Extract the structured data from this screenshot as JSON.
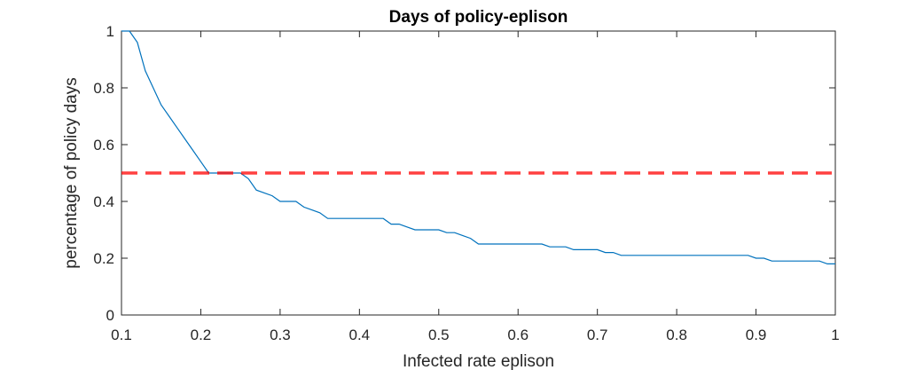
{
  "chart_data": {
    "type": "line",
    "title": "Days of policy-eplison",
    "xlabel": "Infected rate eplison",
    "ylabel": "percentage of policy days",
    "xlim": [
      0.1,
      1
    ],
    "ylim": [
      0,
      1
    ],
    "xticks": [
      0.1,
      0.2,
      0.3,
      0.4,
      0.5,
      0.6,
      0.7,
      0.8,
      0.9,
      1
    ],
    "xtick_labels": [
      "0.1",
      "0.2",
      "0.3",
      "0.4",
      "0.5",
      "0.6",
      "0.7",
      "0.8",
      "0.9",
      "1"
    ],
    "yticks": [
      0,
      0.2,
      0.4,
      0.6,
      0.8,
      1
    ],
    "ytick_labels": [
      "0",
      "0.2",
      "0.4",
      "0.6",
      "0.8",
      "1"
    ],
    "grid": false,
    "box": true,
    "series": [
      {
        "color": "#0072bd",
        "style": "solid",
        "x": [
          0.1,
          0.11,
          0.12,
          0.13,
          0.14,
          0.15,
          0.16,
          0.17,
          0.18,
          0.19,
          0.2,
          0.21,
          0.22,
          0.23,
          0.24,
          0.25,
          0.26,
          0.27,
          0.28,
          0.29,
          0.3,
          0.31,
          0.32,
          0.33,
          0.34,
          0.35,
          0.36,
          0.37,
          0.38,
          0.39,
          0.4,
          0.41,
          0.42,
          0.43,
          0.44,
          0.45,
          0.46,
          0.47,
          0.48,
          0.49,
          0.5,
          0.51,
          0.52,
          0.53,
          0.54,
          0.55,
          0.56,
          0.57,
          0.58,
          0.59,
          0.6,
          0.61,
          0.62,
          0.63,
          0.64,
          0.65,
          0.66,
          0.67,
          0.68,
          0.69,
          0.7,
          0.71,
          0.72,
          0.73,
          0.74,
          0.75,
          0.76,
          0.77,
          0.78,
          0.79,
          0.8,
          0.81,
          0.82,
          0.83,
          0.84,
          0.85,
          0.86,
          0.87,
          0.88,
          0.89,
          0.9,
          0.91,
          0.92,
          0.93,
          0.94,
          0.95,
          0.96,
          0.97,
          0.98,
          0.99,
          1.0
        ],
        "y": [
          1.0,
          1.0,
          0.96,
          0.86,
          0.8,
          0.74,
          0.7,
          0.66,
          0.62,
          0.58,
          0.54,
          0.5,
          0.5,
          0.5,
          0.5,
          0.5,
          0.48,
          0.44,
          0.43,
          0.42,
          0.4,
          0.4,
          0.4,
          0.38,
          0.37,
          0.36,
          0.34,
          0.34,
          0.34,
          0.34,
          0.34,
          0.34,
          0.34,
          0.34,
          0.32,
          0.32,
          0.31,
          0.3,
          0.3,
          0.3,
          0.3,
          0.29,
          0.29,
          0.28,
          0.27,
          0.25,
          0.25,
          0.25,
          0.25,
          0.25,
          0.25,
          0.25,
          0.25,
          0.25,
          0.24,
          0.24,
          0.24,
          0.23,
          0.23,
          0.23,
          0.23,
          0.22,
          0.22,
          0.21,
          0.21,
          0.21,
          0.21,
          0.21,
          0.21,
          0.21,
          0.21,
          0.21,
          0.21,
          0.21,
          0.21,
          0.21,
          0.21,
          0.21,
          0.21,
          0.21,
          0.2,
          0.2,
          0.19,
          0.19,
          0.19,
          0.19,
          0.19,
          0.19,
          0.19,
          0.18,
          0.18
        ]
      },
      {
        "color": "#ff0000",
        "style": "dashed",
        "x": [
          0.1,
          1.0
        ],
        "y": [
          0.5,
          0.5
        ]
      }
    ]
  }
}
